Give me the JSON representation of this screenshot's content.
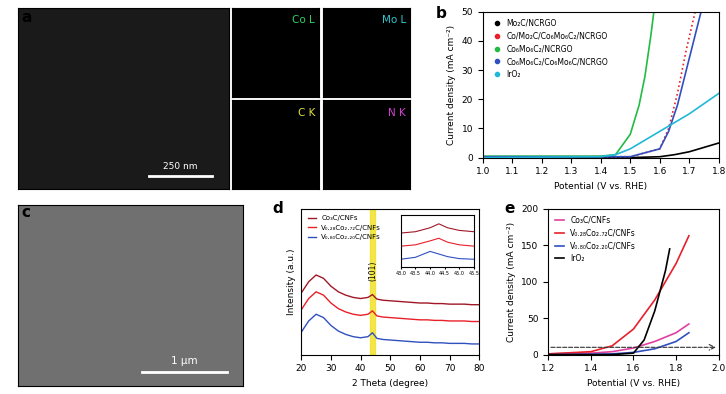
{
  "chart_data": [
    {
      "type": "image",
      "label": "a",
      "maps": [
        "Co L",
        "Mo L",
        "C K",
        "N K"
      ],
      "scale_bar": "250 nm"
    },
    {
      "type": "line",
      "label": "b",
      "x_label": "Potential (V vs. RHE)",
      "y_label": "Current density (mA cm⁻²)",
      "xlim": [
        1.0,
        1.8
      ],
      "xticks": [
        1.0,
        1.1,
        1.2,
        1.3,
        1.4,
        1.5,
        1.6,
        1.7,
        1.8
      ],
      "ylim": [
        0,
        50
      ],
      "yticks": [
        0,
        10,
        20,
        30,
        40,
        50
      ],
      "legend": "upper left",
      "series": [
        {
          "name": "Mo₂C/NCRGO",
          "color": "#000000",
          "marker": "o",
          "line_style": "solid",
          "x": [
            1.0,
            1.5,
            1.6,
            1.65,
            1.7,
            1.75,
            1.8
          ],
          "values": [
            0,
            0,
            0.3,
            1,
            2,
            3.5,
            5
          ]
        },
        {
          "name": "Co/Mo₂C/Co₆Mo₆C₂/NCRGO",
          "color": "#e8202a",
          "marker": "o",
          "line_style": "dotted",
          "x": [
            1.0,
            1.5,
            1.6,
            1.63,
            1.66,
            1.69,
            1.72
          ],
          "values": [
            0.3,
            0.3,
            3,
            10,
            22,
            37,
            50
          ]
        },
        {
          "name": "Co₆Mo₆C₂/NCRGO",
          "color": "#22bb44",
          "marker": "o",
          "line_style": "solid",
          "x": [
            1.0,
            1.4,
            1.45,
            1.5,
            1.53,
            1.55,
            1.57,
            1.58
          ],
          "values": [
            0.5,
            0.5,
            1,
            8,
            18,
            28,
            42,
            50
          ]
        },
        {
          "name": "Co₆Mo₆C₂/Co₆Mo₆C/NCRGO",
          "color": "#3050c0",
          "marker": "o",
          "line_style": "solid",
          "x": [
            1.0,
            1.5,
            1.6,
            1.63,
            1.66,
            1.69,
            1.72,
            1.74
          ],
          "values": [
            0.3,
            0.3,
            3,
            9,
            18,
            30,
            42,
            50
          ]
        },
        {
          "name": "IrO₂",
          "color": "#20b8d8",
          "marker": "o",
          "line_style": "solid",
          "x": [
            1.0,
            1.4,
            1.45,
            1.5,
            1.6,
            1.7,
            1.8
          ],
          "values": [
            0,
            0.3,
            1,
            3,
            9,
            15,
            22
          ]
        }
      ]
    },
    {
      "type": "image",
      "label": "c",
      "scale_bar": "1 μm"
    },
    {
      "type": "line",
      "label": "d",
      "x_label": "2 Theta (degree)",
      "y_label": "Intensity (a.u.)",
      "xlim": [
        20,
        80
      ],
      "xticks": [
        20,
        30,
        40,
        50,
        60,
        70,
        80
      ],
      "ylim": [
        0,
        13
      ],
      "tick_labels": "x",
      "legend": "upper left",
      "band": [
        43.3,
        44.7
      ],
      "annotations": [
        {
          "text": "(101)",
          "x": 44,
          "y": 6.6
        }
      ],
      "x": [
        20,
        22.5,
        25,
        27.5,
        30,
        32.5,
        35,
        37.5,
        40,
        42.5,
        44,
        45.5,
        47.5,
        50,
        52.5,
        55,
        57.5,
        60,
        62.5,
        65,
        67.5,
        70,
        72.5,
        75,
        77.5,
        80
      ],
      "series": [
        {
          "name": "Co₃C/CNFs",
          "color": "#a01828",
          "values": [
            5.5,
            6.5,
            7.1,
            6.8,
            6.1,
            5.6,
            5.3,
            5.1,
            5.0,
            5.1,
            5.35,
            4.95,
            4.85,
            4.8,
            4.75,
            4.7,
            4.65,
            4.6,
            4.6,
            4.55,
            4.55,
            4.5,
            4.5,
            4.5,
            4.45,
            4.45
          ]
        },
        {
          "name": "V₀.₂₈Co₂.₇₂C/CNFs",
          "color": "#e8202a",
          "values": [
            4.0,
            5.0,
            5.6,
            5.3,
            4.6,
            4.1,
            3.8,
            3.6,
            3.5,
            3.6,
            3.9,
            3.45,
            3.35,
            3.3,
            3.25,
            3.2,
            3.15,
            3.1,
            3.1,
            3.05,
            3.05,
            3.0,
            3.0,
            3.0,
            2.95,
            2.95
          ]
        },
        {
          "name": "V₀.₈₀Co₂.₂₀C/CNFs",
          "color": "#3050c0",
          "values": [
            2.0,
            3.0,
            3.6,
            3.3,
            2.6,
            2.1,
            1.8,
            1.6,
            1.5,
            1.6,
            1.95,
            1.45,
            1.35,
            1.3,
            1.25,
            1.2,
            1.15,
            1.1,
            1.1,
            1.05,
            1.05,
            1.0,
            1.0,
            1.0,
            0.95,
            0.95
          ]
        }
      ],
      "inset": {
        "xlim": [
          43.0,
          45.5
        ],
        "xticks": [
          43.0,
          43.5,
          44.0,
          44.5,
          45.0,
          45.5
        ],
        "ylim": [
          0,
          4
        ],
        "x": [
          43.0,
          43.5,
          44.0,
          44.3,
          44.6,
          45.0,
          45.5
        ],
        "series": [
          {
            "color": "#a01828",
            "values": [
              2.6,
              2.7,
              3.0,
              3.3,
              3.0,
              2.8,
              2.7
            ]
          },
          {
            "color": "#e8202a",
            "values": [
              1.6,
              1.7,
              2.0,
              2.2,
              1.9,
              1.7,
              1.6
            ]
          },
          {
            "color": "#3050c0",
            "values": [
              0.6,
              0.75,
              1.2,
              1.0,
              0.8,
              0.65,
              0.6
            ]
          }
        ]
      }
    },
    {
      "type": "line",
      "label": "e",
      "x_label": "Potential (V vs. RHE)",
      "y_label": "Current density (mA cm⁻²)",
      "xlim": [
        1.2,
        2.0
      ],
      "xticks": [
        1.2,
        1.4,
        1.6,
        1.8,
        2.0
      ],
      "ylim": [
        0,
        200
      ],
      "yticks": [
        0,
        50,
        100,
        150,
        200
      ],
      "legend": "upper left",
      "hline": 10,
      "series": [
        {
          "name": "Co₃C/CNFs",
          "color": "#e040a0",
          "x": [
            1.2,
            1.4,
            1.5,
            1.6,
            1.7,
            1.8,
            1.86
          ],
          "values": [
            1,
            2,
            4,
            9,
            18,
            30,
            42
          ]
        },
        {
          "name": "V₀.₂₈Co₂.₇₂C/CNFs",
          "color": "#e8202a",
          "x": [
            1.2,
            1.4,
            1.5,
            1.6,
            1.7,
            1.8,
            1.86
          ],
          "values": [
            1,
            4,
            12,
            35,
            75,
            125,
            163
          ]
        },
        {
          "name": "V₀.₈₀Co₂.₂₀C/CNFs",
          "color": "#3050c0",
          "x": [
            1.2,
            1.4,
            1.5,
            1.6,
            1.7,
            1.8,
            1.86
          ],
          "values": [
            0,
            0.5,
            1,
            3,
            8,
            18,
            30
          ]
        },
        {
          "name": "IrO₂",
          "color": "#000000",
          "x": [
            1.2,
            1.5,
            1.6,
            1.65,
            1.7,
            1.75,
            1.77
          ],
          "values": [
            0,
            0,
            2,
            20,
            60,
            115,
            145
          ]
        }
      ]
    }
  ]
}
